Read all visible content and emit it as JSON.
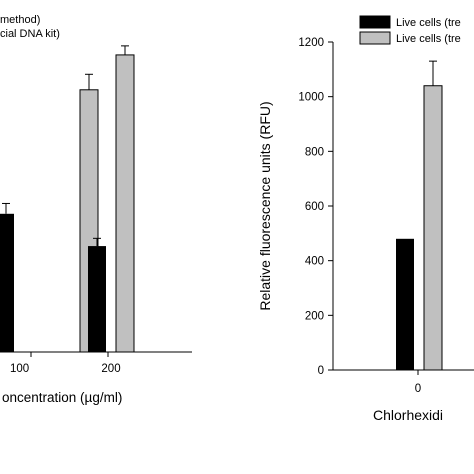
{
  "chart_data": [
    {
      "type": "bar",
      "panel": "left",
      "categories": [
        "100",
        "200"
      ],
      "xlabel": "oncentration (µg/ml)",
      "ylabel": "",
      "ylim": [
        0,
        1200
      ],
      "legend_location": "top-left",
      "series": [
        {
          "name": "method)",
          "color": "#000000",
          "values": [
            535,
            410
          ],
          "errors": [
            40,
            30
          ]
        },
        {
          "name": "cial DNA kit)",
          "color": "#c0c0c0",
          "values": [
            1015,
            1150
          ],
          "errors": [
            60,
            35
          ]
        }
      ],
      "partial_bar": {
        "series": 0,
        "value": 535,
        "error": 40
      }
    },
    {
      "type": "bar",
      "panel": "right",
      "categories": [
        "0"
      ],
      "xlabel": "Chlorhexidi",
      "ylabel": "Relative fluorescence units (RFU)",
      "ylim": [
        0,
        1200
      ],
      "yticks": [
        "0",
        "200",
        "400",
        "600",
        "800",
        "1000",
        "1200"
      ],
      "legend_location": "top-right",
      "series": [
        {
          "name": "Live cells (tre",
          "color": "#000000",
          "values": [
            480
          ],
          "errors": [
            0
          ]
        },
        {
          "name": "Live cells (tre",
          "color": "#c0c0c0",
          "values": [
            1040
          ],
          "errors": [
            90
          ]
        }
      ]
    }
  ]
}
